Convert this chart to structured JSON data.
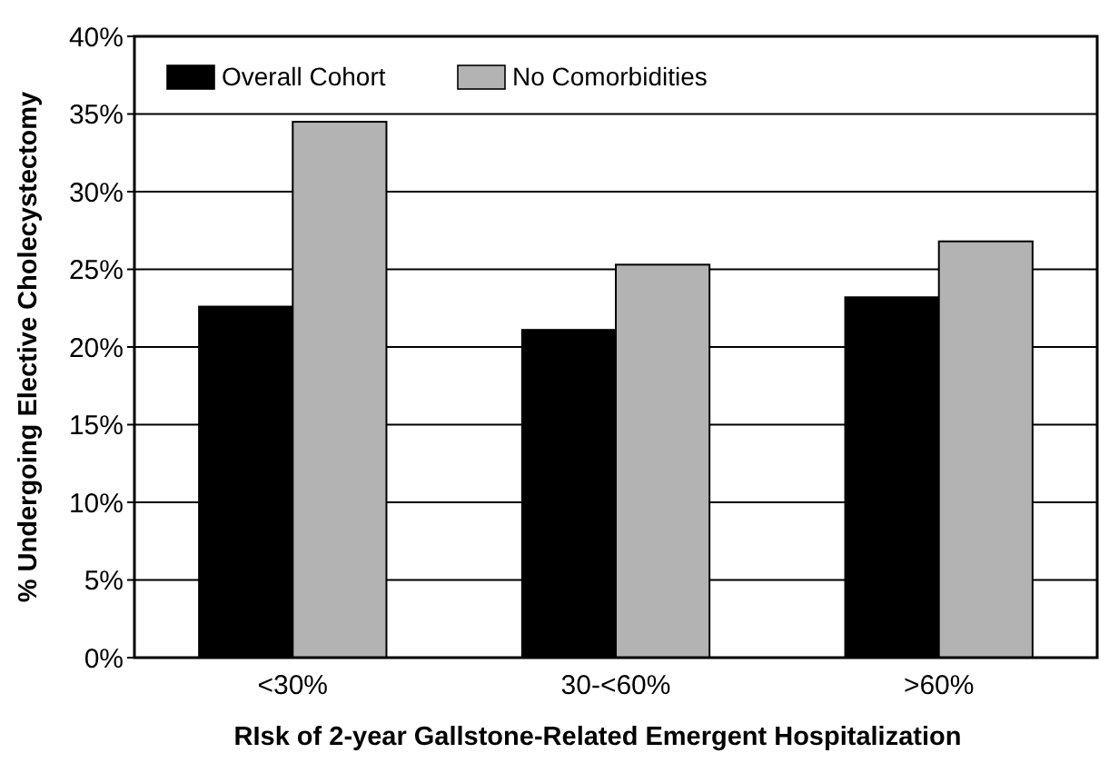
{
  "chart_data": {
    "type": "bar",
    "xlabel": "RIsk of 2-year Gallstone-Related Emergent Hospitalization",
    "ylabel": "% Undergoing Elective Cholecystectomy",
    "categories": [
      "<30%",
      "30-<60%",
      ">60%"
    ],
    "series": [
      {
        "name": "Overall Cohort",
        "color": "#000000",
        "values": [
          22.6,
          21.1,
          23.2
        ]
      },
      {
        "name": "No Comorbidities",
        "color": "#b3b3b3",
        "values": [
          34.5,
          25.3,
          26.8
        ]
      }
    ],
    "ylim": [
      0,
      40
    ],
    "yticks": [
      {
        "value": 0,
        "label": "0%"
      },
      {
        "value": 5,
        "label": "5%"
      },
      {
        "value": 10,
        "label": "10%"
      },
      {
        "value": 15,
        "label": "15%"
      },
      {
        "value": 20,
        "label": "20%"
      },
      {
        "value": 25,
        "label": "25%"
      },
      {
        "value": 30,
        "label": "30%"
      },
      {
        "value": 35,
        "label": "35%"
      },
      {
        "value": 40,
        "label": "40%"
      }
    ],
    "grid": "y",
    "legend": "top left"
  }
}
